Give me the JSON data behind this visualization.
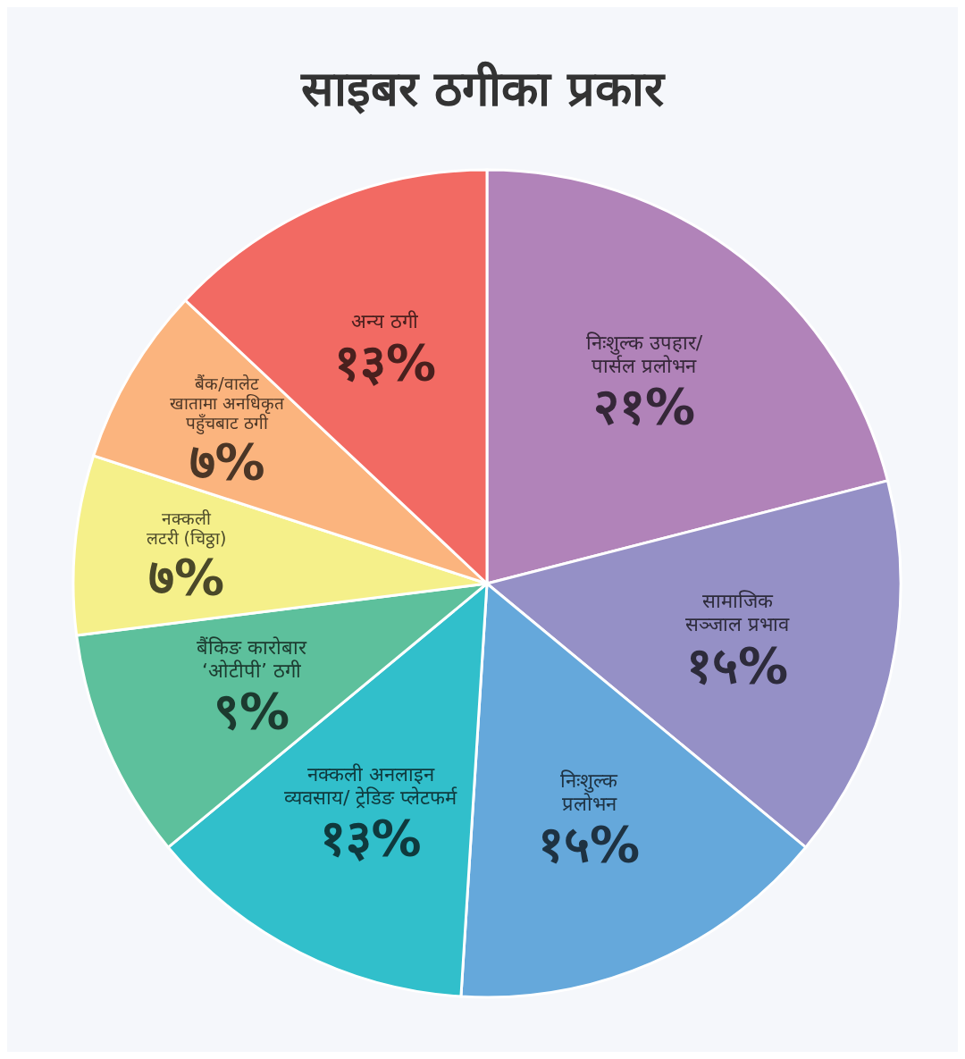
{
  "chart_data": {
    "type": "pie",
    "title": "साइबर ठगीका प्रकार",
    "categories": [
      "निःशुल्क उपहार/\nपार्सल प्रलोभन",
      "सामाजिक\nसञ्जाल प्रभाव",
      "निःशुल्क\nप्रलोभन",
      "नक्कली अनलाइन\nव्यवसाय/ ट्रेडिङ प्लेटफर्म",
      "बैंकिङ कारोबार\n‘ओटीपी’ ठगी",
      "नक्कली\nलटरी (चिठ्ठा)",
      "बैंक/वालेट\nखातामा अनधिकृत\nपहुँचबाट ठगी",
      "अन्य ठगी"
    ],
    "values": [
      21,
      15,
      15,
      13,
      9,
      7,
      7,
      13
    ],
    "value_labels": [
      "२१%",
      "१५%",
      "१५%",
      "१३%",
      "९%",
      "७%",
      "७%",
      "१३%"
    ],
    "colors": [
      "#b183b9",
      "#9590c6",
      "#65a8db",
      "#31bfcb",
      "#5dc09c",
      "#f5f08a",
      "#fbb47e",
      "#f26a63"
    ]
  }
}
